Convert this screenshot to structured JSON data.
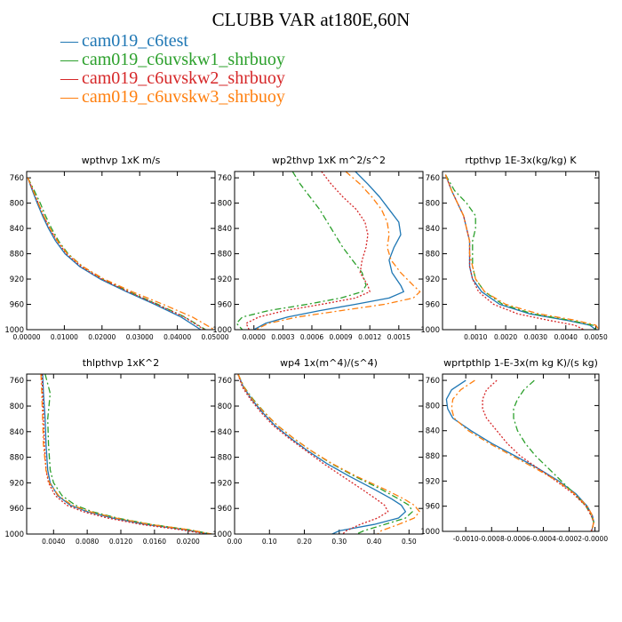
{
  "title": "CLUBB VAR at180E,60N",
  "legend": [
    {
      "name": "cam019_c6test",
      "color": "#1f77b4",
      "dash": "solid"
    },
    {
      "name": "cam019_c6uvskw1_shrbuoy",
      "color": "#2ca02c",
      "dash": "dashdot"
    },
    {
      "name": "cam019_c6uvskw2_shrbuoy",
      "color": "#d62728",
      "dash": "dot"
    },
    {
      "name": "cam019_c6uvskw3_shrbuoy",
      "color": "#ff7f0e",
      "dash": "dashdot"
    }
  ],
  "chart_data": [
    {
      "type": "line",
      "title": "wpthvp  1xK m/s",
      "ylim": [
        1000,
        750
      ],
      "yticks": [
        760,
        800,
        840,
        880,
        920,
        960,
        1000
      ],
      "xlim": [
        0,
        0.05
      ],
      "xticks": [
        0,
        0.01,
        0.02,
        0.03,
        0.04,
        0.05
      ],
      "xticklabels": [
        "0.00000",
        "0.01000",
        "0.02000",
        "0.03000",
        "0.04000",
        "0.05000"
      ],
      "y": [
        760,
        780,
        800,
        820,
        840,
        860,
        880,
        900,
        920,
        940,
        960,
        980,
        1000
      ],
      "series": [
        {
          "name": "cam019_c6test",
          "values": [
            0.0003,
            0.0015,
            0.0028,
            0.0042,
            0.0058,
            0.0077,
            0.0102,
            0.014,
            0.0195,
            0.0265,
            0.034,
            0.041,
            0.0462
          ]
        },
        {
          "name": "cam019_c6uvskw1_shrbuoy",
          "values": [
            0.0003,
            0.002,
            0.0036,
            0.005,
            0.0066,
            0.0085,
            0.011,
            0.0148,
            0.0202,
            0.0272,
            0.0348,
            0.042,
            0.0475
          ]
        },
        {
          "name": "cam019_c6uvskw2_shrbuoy",
          "values": [
            0.0003,
            0.0017,
            0.0031,
            0.0045,
            0.0061,
            0.0081,
            0.0106,
            0.0144,
            0.0199,
            0.027,
            0.0346,
            0.0418,
            0.0472
          ]
        },
        {
          "name": "cam019_c6uvskw3_shrbuoy",
          "values": [
            0.0003,
            0.0017,
            0.0031,
            0.0045,
            0.0062,
            0.0082,
            0.0108,
            0.0148,
            0.0205,
            0.028,
            0.0362,
            0.044,
            0.0498
          ]
        }
      ]
    },
    {
      "type": "line",
      "title": "wp2thvp  1xK m^2/s^2",
      "ylim": [
        1000,
        750
      ],
      "yticks": [
        760,
        800,
        840,
        880,
        920,
        960,
        1000
      ],
      "xlim": [
        -0.0002,
        0.00175
      ],
      "xticks": [
        0,
        0.0003,
        0.0006,
        0.0009,
        0.0012,
        0.0015
      ],
      "xticklabels": [
        "0.0000",
        "0.0003",
        "0.0006",
        "0.0009",
        "0.0012",
        "0.0015"
      ],
      "y": [
        750,
        770,
        790,
        810,
        830,
        850,
        870,
        890,
        910,
        930,
        940,
        950,
        960,
        970,
        980,
        990,
        1000
      ],
      "series": [
        {
          "name": "cam019_c6test",
          "values": [
            0.00105,
            0.00118,
            0.0013,
            0.0014,
            0.0015,
            0.00152,
            0.00145,
            0.0014,
            0.00143,
            0.00152,
            0.00155,
            0.0014,
            0.00105,
            0.00068,
            0.00035,
            0.00012,
            0.0
          ]
        },
        {
          "name": "cam019_c6uvskw1_shrbuoy",
          "values": [
            0.0004,
            0.00048,
            0.00058,
            0.00068,
            0.00076,
            0.00084,
            0.00092,
            0.00102,
            0.00112,
            0.00116,
            0.00112,
            0.0009,
            0.00055,
            0.00015,
            -0.00012,
            -0.00018,
            -0.00012
          ]
        },
        {
          "name": "cam019_c6uvskw2_shrbuoy",
          "values": [
            0.0007,
            0.0008,
            0.00092,
            0.00106,
            0.00115,
            0.00118,
            0.00116,
            0.00112,
            0.0011,
            0.00118,
            0.0012,
            0.00105,
            0.0007,
            0.00032,
            5e-05,
            -8e-05,
            -5e-05
          ]
        },
        {
          "name": "cam019_c6uvskw3_shrbuoy",
          "values": [
            0.00095,
            0.0011,
            0.00122,
            0.00132,
            0.00138,
            0.0014,
            0.00138,
            0.00142,
            0.00152,
            0.00165,
            0.00172,
            0.00165,
            0.00135,
            0.0009,
            0.00045,
            0.00015,
            2e-05
          ]
        }
      ]
    },
    {
      "type": "line",
      "title": "rtpthvp  1E-3x(kg/kg) K",
      "ylim": [
        1000,
        750
      ],
      "yticks": [
        760,
        800,
        840,
        880,
        920,
        960,
        1000
      ],
      "xlim": [
        -0.0001,
        0.0051
      ],
      "xticks": [
        0.001,
        0.002,
        0.003,
        0.004,
        0.005
      ],
      "xticklabels": [
        "0.0010",
        "0.0020",
        "0.0030",
        "0.0040",
        "0.0050"
      ],
      "y": [
        755,
        780,
        800,
        820,
        840,
        860,
        880,
        900,
        920,
        940,
        960,
        975,
        985,
        993,
        1000
      ],
      "series": [
        {
          "name": "cam019_c6test",
          "values": [
            0.0,
            0.0002,
            0.0004,
            0.0006,
            0.0007,
            0.0008,
            0.0008,
            0.0008,
            0.0009,
            0.0012,
            0.0018,
            0.0028,
            0.004,
            0.0048,
            0.005
          ]
        },
        {
          "name": "cam019_c6uvskw1_shrbuoy",
          "values": [
            0.0,
            0.0003,
            0.0007,
            0.001,
            0.001,
            0.0009,
            0.0009,
            0.0009,
            0.001,
            0.0013,
            0.0019,
            0.0029,
            0.0041,
            0.0049,
            0.005
          ]
        },
        {
          "name": "cam019_c6uvskw2_shrbuoy",
          "values": [
            0.0,
            0.0002,
            0.0004,
            0.0006,
            0.0007,
            0.0008,
            0.0008,
            0.0008,
            0.0009,
            0.0011,
            0.0016,
            0.0024,
            0.0034,
            0.0043,
            0.0046
          ]
        },
        {
          "name": "cam019_c6uvskw3_shrbuoy",
          "values": [
            0.0,
            0.0002,
            0.0004,
            0.0006,
            0.0007,
            0.0008,
            0.0008,
            0.0009,
            0.001,
            0.0013,
            0.002,
            0.0031,
            0.0043,
            0.005,
            0.0051
          ]
        }
      ]
    },
    {
      "type": "line",
      "title": "thlpthvp  1xK^2",
      "ylim": [
        1000,
        750
      ],
      "yticks": [
        760,
        800,
        840,
        880,
        920,
        960,
        1000
      ],
      "xlim": [
        0.0008,
        0.0232
      ],
      "xticks": [
        0.004,
        0.008,
        0.012,
        0.016,
        0.02
      ],
      "xticklabels": [
        "0.0040",
        "0.0080",
        "0.0120",
        "0.0160",
        "0.0200"
      ],
      "y": [
        750,
        780,
        820,
        860,
        900,
        920,
        940,
        955,
        965,
        975,
        985,
        993,
        1000
      ],
      "series": [
        {
          "name": "cam019_c6test",
          "values": [
            0.0027,
            0.0028,
            0.003,
            0.0031,
            0.0033,
            0.0036,
            0.0045,
            0.006,
            0.008,
            0.011,
            0.015,
            0.0195,
            0.0225
          ]
        },
        {
          "name": "cam019_c6uvskw1_shrbuoy",
          "values": [
            0.003,
            0.0036,
            0.0033,
            0.0034,
            0.0036,
            0.004,
            0.005,
            0.0066,
            0.0086,
            0.0116,
            0.0156,
            0.02,
            0.0228
          ]
        },
        {
          "name": "cam019_c6uvskw2_shrbuoy",
          "values": [
            0.0026,
            0.0027,
            0.0028,
            0.0029,
            0.0031,
            0.0034,
            0.0042,
            0.0056,
            0.0075,
            0.0104,
            0.0144,
            0.019,
            0.0222
          ]
        },
        {
          "name": "cam019_c6uvskw3_shrbuoy",
          "values": [
            0.0025,
            0.0026,
            0.0027,
            0.0028,
            0.0031,
            0.0035,
            0.0046,
            0.0062,
            0.0083,
            0.0114,
            0.0155,
            0.02,
            0.0228
          ]
        }
      ]
    },
    {
      "type": "line",
      "title": "wp4  1x(m^4)/(s^4)",
      "ylim": [
        1000,
        750
      ],
      "yticks": [
        760,
        800,
        840,
        880,
        920,
        960,
        1000
      ],
      "xlim": [
        0,
        0.54
      ],
      "xticks": [
        0,
        0.1,
        0.2,
        0.3,
        0.4,
        0.5
      ],
      "xticklabels": [
        "0.00",
        "0.10",
        "0.20",
        "0.30",
        "0.40",
        "0.50"
      ],
      "y": [
        750,
        770,
        790,
        810,
        830,
        850,
        870,
        890,
        910,
        930,
        945,
        955,
        965,
        975,
        985,
        995,
        1000
      ],
      "series": [
        {
          "name": "cam019_c6test",
          "values": [
            0.01,
            0.025,
            0.05,
            0.08,
            0.115,
            0.16,
            0.21,
            0.265,
            0.33,
            0.4,
            0.45,
            0.478,
            0.49,
            0.47,
            0.4,
            0.3,
            0.28
          ]
        },
        {
          "name": "cam019_c6uvskw1_shrbuoy",
          "values": [
            0.01,
            0.027,
            0.054,
            0.086,
            0.122,
            0.168,
            0.22,
            0.278,
            0.345,
            0.42,
            0.47,
            0.5,
            0.51,
            0.49,
            0.43,
            0.37,
            0.35
          ]
        },
        {
          "name": "cam019_c6uvskw2_shrbuoy",
          "values": [
            0.01,
            0.022,
            0.046,
            0.076,
            0.11,
            0.155,
            0.205,
            0.255,
            0.31,
            0.365,
            0.405,
            0.43,
            0.44,
            0.41,
            0.36,
            0.32,
            0.31
          ]
        },
        {
          "name": "cam019_c6uvskw3_shrbuoy",
          "values": [
            0.01,
            0.026,
            0.052,
            0.085,
            0.122,
            0.168,
            0.22,
            0.28,
            0.35,
            0.43,
            0.485,
            0.515,
            0.53,
            0.515,
            0.47,
            0.42,
            0.41
          ]
        }
      ]
    },
    {
      "type": "line",
      "title": "wprtpthlp  1-E-3x(m kg K)/(s kg)",
      "ylim": [
        1000,
        750
      ],
      "yticks": [
        760,
        800,
        840,
        880,
        920,
        960,
        1000
      ],
      "xlim": [
        -0.00118,
        3e-05
      ],
      "xticks": [
        -0.001,
        -0.0008,
        -0.0006,
        -0.0004,
        -0.0002,
        0
      ],
      "xticklabels": [
        "-0.0010",
        "-0.0008",
        "-0.0006",
        "-0.0004",
        "-0.0002",
        "-0.0000"
      ],
      "y": [
        760,
        775,
        790,
        805,
        820,
        840,
        860,
        880,
        900,
        920,
        940,
        960,
        975,
        985,
        995,
        1000
      ],
      "series": [
        {
          "name": "cam019_c6test",
          "values": [
            -0.001,
            -0.00111,
            -0.00115,
            -0.00114,
            -0.0011,
            -0.00096,
            -0.0008,
            -0.00062,
            -0.00044,
            -0.00028,
            -0.00015,
            -6e-05,
            -2e-05,
            -1e-05,
            -2e-05,
            -3e-05
          ]
        },
        {
          "name": "cam019_c6uvskw1_shrbuoy",
          "values": [
            -0.00047,
            -0.00055,
            -0.0006,
            -0.00063,
            -0.00063,
            -0.0006,
            -0.00054,
            -0.00046,
            -0.00036,
            -0.00026,
            -0.00016,
            -7e-05,
            -3e-05,
            -1e-05,
            -2e-05,
            -3e-05
          ]
        },
        {
          "name": "cam019_c6uvskw2_shrbuoy",
          "values": [
            -0.00076,
            -0.00084,
            -0.00087,
            -0.00087,
            -0.00084,
            -0.00076,
            -0.00068,
            -0.00058,
            -0.00044,
            -0.0003,
            -0.00017,
            -7e-05,
            -3e-05,
            -1e-05,
            -2e-05,
            -3e-05
          ]
        },
        {
          "name": "cam019_c6uvskw3_shrbuoy",
          "values": [
            -0.00093,
            -0.00104,
            -0.0011,
            -0.00111,
            -0.00109,
            -0.00098,
            -0.00082,
            -0.00064,
            -0.00046,
            -0.00029,
            -0.00016,
            -6e-05,
            -2e-05,
            -1e-05,
            -2e-05,
            -3e-05
          ]
        }
      ]
    }
  ]
}
